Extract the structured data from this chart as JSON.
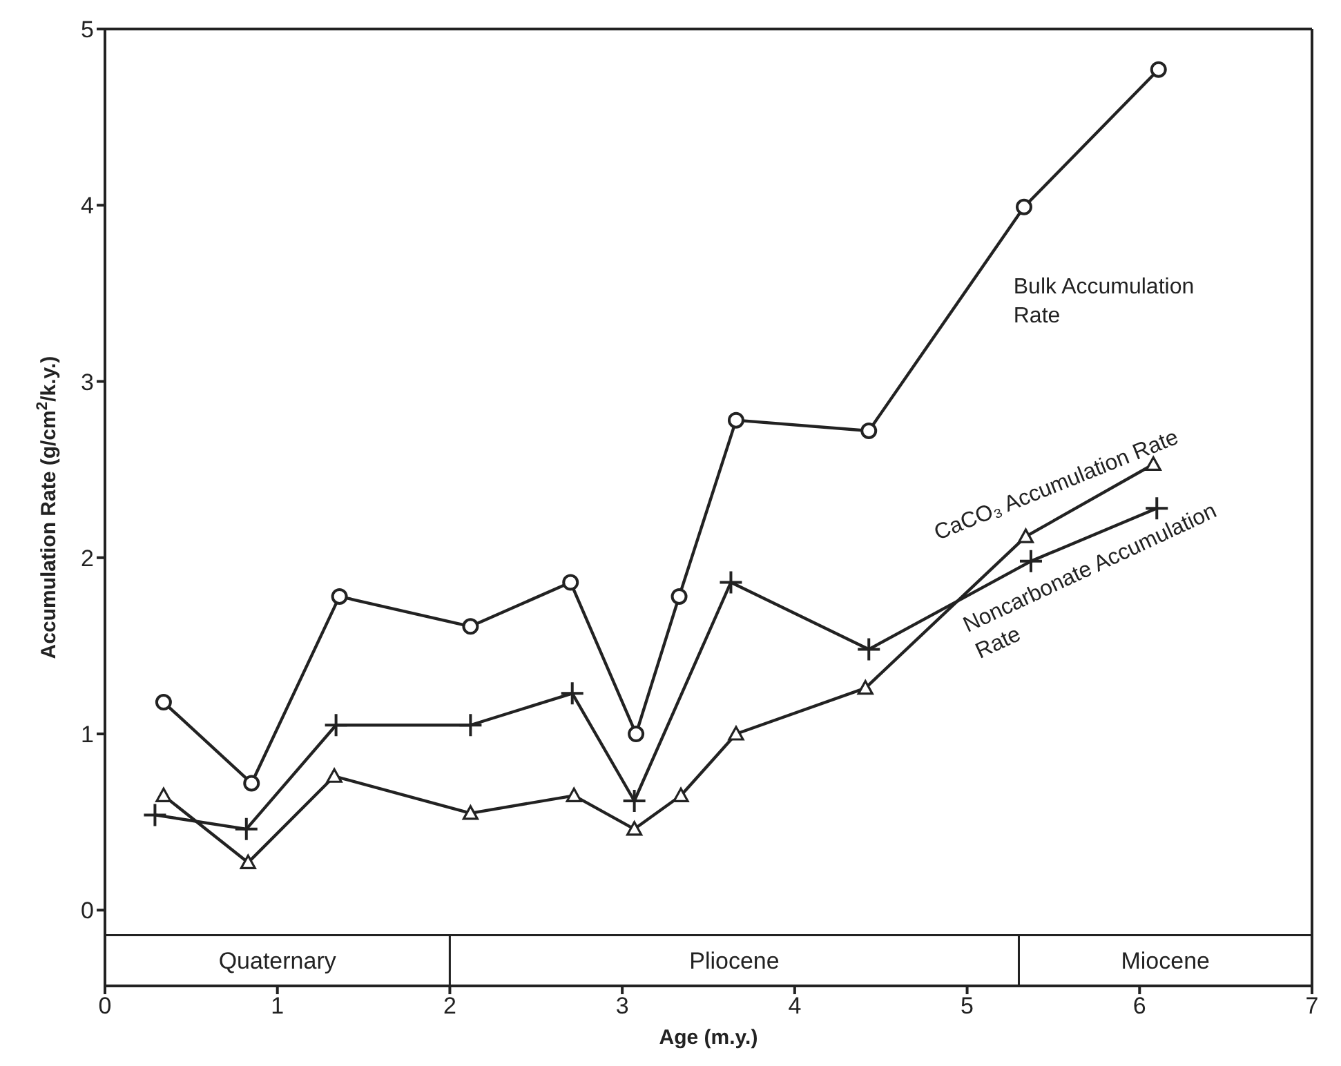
{
  "chart_data": {
    "type": "line",
    "xlabel": "Age (m.y.)",
    "ylabel": "Accumulation Rate (g/cm$^{2}$/k.y.)",
    "xlim": [
      0,
      7
    ],
    "xticks": [
      0,
      1,
      2,
      3,
      4,
      5,
      6,
      7
    ],
    "ylim": [
      -0.43,
      5
    ],
    "yticks": [
      0,
      1,
      2,
      3,
      4,
      5
    ],
    "line_style": "solid",
    "series": [
      {
        "name": "Bulk Accumulation Rate",
        "color": "#222222",
        "marker": "circle",
        "x": [
          0.34,
          0.85,
          1.36,
          2.12,
          2.7,
          3.08,
          3.33,
          3.66,
          4.43,
          5.33,
          6.11
        ],
        "values": [
          1.18,
          0.72,
          1.78,
          1.61,
          1.86,
          1.0,
          1.78,
          2.78,
          2.72,
          3.99,
          4.77
        ]
      },
      {
        "name": "CaCO₃ Accumulation Rate",
        "color": "#222222",
        "marker": "triangle",
        "x": [
          0.34,
          0.83,
          1.33,
          2.12,
          2.72,
          3.07,
          3.34,
          3.66,
          4.41,
          5.34,
          6.08
        ],
        "values": [
          0.65,
          0.27,
          0.76,
          0.55,
          0.65,
          0.46,
          0.65,
          1.0,
          1.26,
          2.12,
          2.53
        ]
      },
      {
        "name": "Noncarbonate Accumulation Rate",
        "color": "#222222",
        "marker": "cross",
        "x": [
          0.29,
          0.82,
          1.34,
          2.12,
          2.71,
          3.07,
          3.63,
          4.43,
          5.37,
          6.1
        ],
        "values": [
          0.54,
          0.46,
          1.05,
          1.05,
          1.23,
          0.62,
          1.86,
          1.48,
          1.98,
          2.28
        ]
      }
    ],
    "bands": [
      {
        "axis": "x",
        "from": 0,
        "to": 2,
        "label": "Quaternary"
      },
      {
        "axis": "x",
        "from": 2,
        "to": 5.3,
        "label": "Pliocene"
      },
      {
        "axis": "x",
        "from": 5.3,
        "to": 7,
        "label": "Miocene"
      }
    ]
  }
}
